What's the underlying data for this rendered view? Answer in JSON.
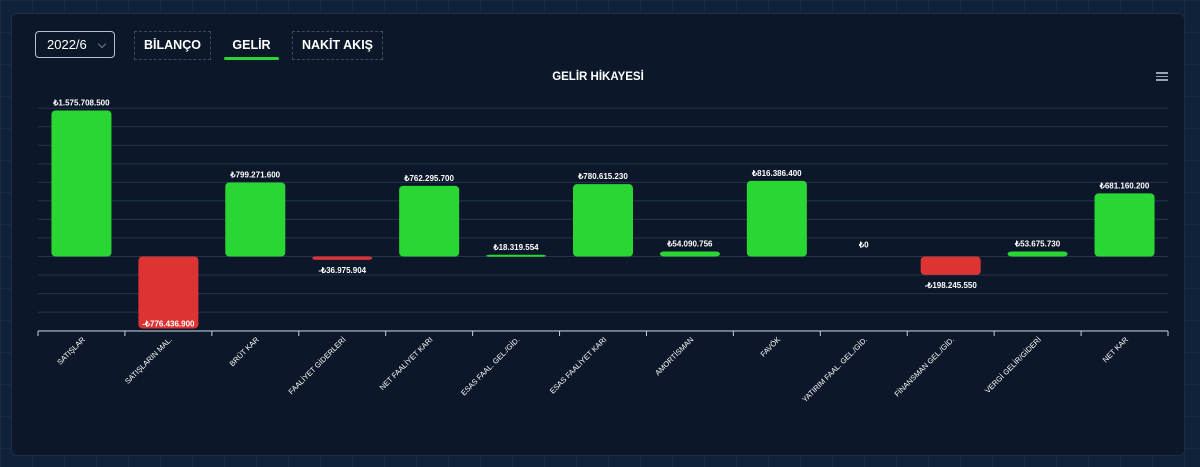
{
  "controls": {
    "period_value": "2022/6",
    "tabs": [
      {
        "label": "BİLANÇO",
        "active": false
      },
      {
        "label": "GELİR",
        "active": true
      },
      {
        "label": "NAKİT AKIŞ",
        "active": false
      }
    ]
  },
  "colors": {
    "positive": "#2ad634",
    "negative": "#dd3333",
    "accent": "#2ad634",
    "background": "#0c1829"
  },
  "icons": {
    "menu": "hamburger-menu-icon",
    "dropdown": "chevron-down-icon"
  },
  "chart_data": {
    "type": "bar",
    "title": "GELİR HİKAYESİ",
    "xlabel": "",
    "ylabel": "",
    "grid": true,
    "ylim": [
      -800000000,
      1600000000
    ],
    "categories": [
      "SATIŞLAR",
      "SATIŞLARIN MAL.",
      "BRÜT KAR",
      "FAALİYET GİDERLERİ",
      "NET FAALİYET KARI",
      "ESAS FAAL. GEL./GİD.",
      "ESAS FAALİYET KARI",
      "AMORTİSMAN",
      "FAVÖK",
      "YATIRIM FAAL. GEL./GİD.",
      "FİNANSMAN GEL./GİD.",
      "VERGİ GELİR/GİDERİ",
      "NET KAR"
    ],
    "values": [
      1575708500,
      -776436900,
      799271600,
      -36975904,
      762295700,
      18319554,
      780615230,
      54090756,
      816386400,
      0,
      -198245550,
      53675730,
      681160200
    ],
    "value_labels": [
      "₺1.575.708.500",
      "-₺776.436.900",
      "₺799.271.600",
      "-₺36.975.904",
      "₺762.295.700",
      "₺18.319.554",
      "₺780.615.230",
      "₺54.090.756",
      "₺816.386.400",
      "₺0",
      "-₺198.245.550",
      "₺53.675.730",
      "₺681.160.200"
    ]
  }
}
